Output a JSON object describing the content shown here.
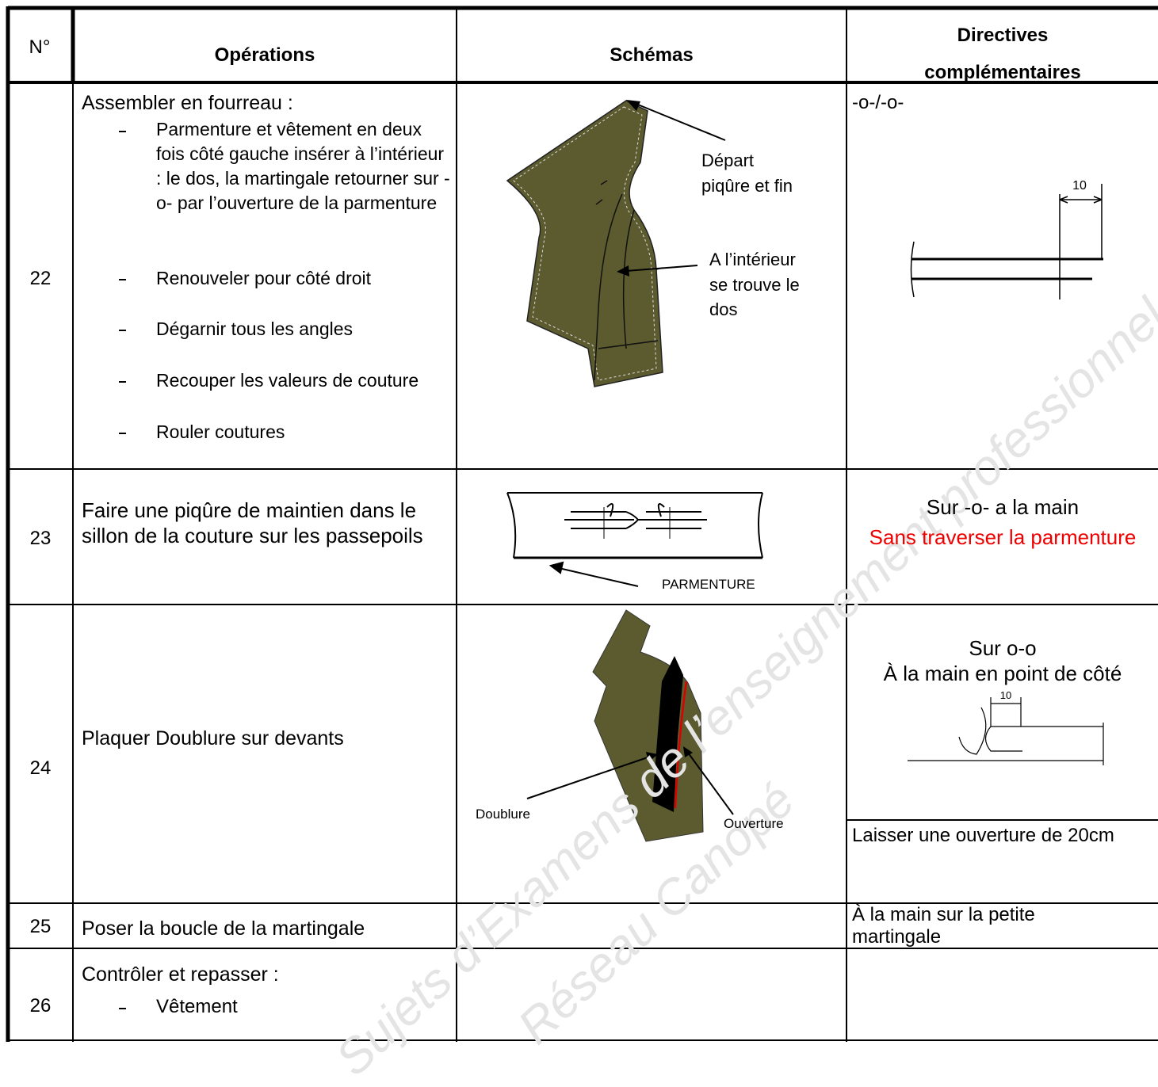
{
  "header": {
    "number": "N°",
    "operations": "Opérations",
    "schemas": "Schémas",
    "directives": [
      "Directives",
      "complémentaires"
    ]
  },
  "rows": [
    {
      "number": "22",
      "operation": {
        "intro": "Assembler en fourreau :",
        "items": [
          "Parmenture et vêtement en deux fois côté gauche insérer à l’intérieur : le dos, la martingale retourner sur -o- par l’ouverture de la parmenture",
          "Renouveler pour côté droit",
          "Dégarnir tous les angles",
          "Recouper les valeurs de couture",
          "Rouler coutures"
        ]
      },
      "schema_labels": [
        [
          "Départ",
          "piqûre et fin"
        ],
        [
          "A l’intérieur",
          "se trouve le",
          "dos"
        ]
      ],
      "directives": [
        "-o-/-o-"
      ],
      "dimension": "10"
    },
    {
      "number": "23",
      "operation": "Faire une piqûre de maintien dans le sillon de la couture sur les passepoils",
      "schema_labels": [
        "PARMENTURE"
      ],
      "directives": [
        "Sur -o- a la main",
        "Sans traverser la parmenture"
      ]
    },
    {
      "number": "24",
      "operation": "Plaquer Doublure sur devants",
      "schema_labels": [
        "Doublure",
        "Ouverture"
      ],
      "directives": [
        "Sur o-o",
        "À la main en point de côté"
      ],
      "dimension": "10",
      "directives_lower": "Laisser une ouverture de 20cm"
    },
    {
      "number": "25",
      "operation": "Poser la boucle de la martingale",
      "directives": [
        "À la main sur la petite",
        "martingale"
      ]
    },
    {
      "number": "26",
      "operation": {
        "intro": "Contrôler et repasser :",
        "items": [
          "Vêtement"
        ]
      }
    }
  ],
  "watermark": [
    "Sujets d’Examens de l’enseignement professionnel",
    "Réseau Canopé"
  ]
}
